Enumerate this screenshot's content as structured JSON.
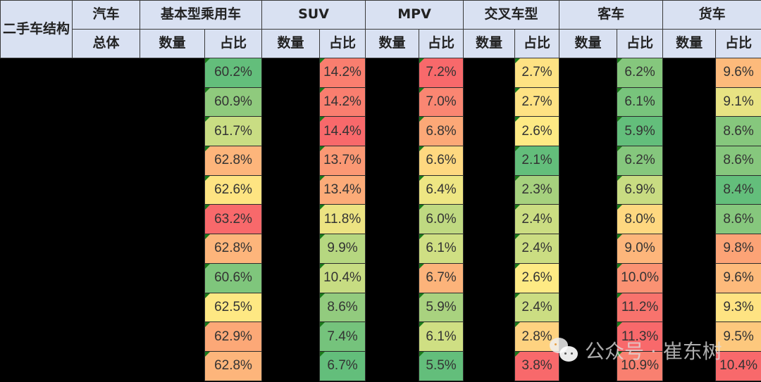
{
  "header": {
    "corner_label": "二手车结构",
    "groups": [
      {
        "label": "汽车"
      },
      {
        "label": "基本型乘用车"
      },
      {
        "label": "SUV"
      },
      {
        "label": "MPV"
      },
      {
        "label": "交叉车型"
      },
      {
        "label": "客车"
      },
      {
        "label": "货车"
      }
    ],
    "sub": {
      "total": "总体",
      "count": "数量",
      "ratio": "占比"
    }
  },
  "rows": [
    {
      "basic": "60.2%",
      "suv": "14.2%",
      "mpv": "7.2%",
      "cross": "2.7%",
      "bus": "6.2%",
      "truck": "9.6%"
    },
    {
      "basic": "60.9%",
      "suv": "14.2%",
      "mpv": "7.0%",
      "cross": "2.7%",
      "bus": "6.1%",
      "truck": "9.1%"
    },
    {
      "basic": "61.7%",
      "suv": "14.4%",
      "mpv": "6.8%",
      "cross": "2.6%",
      "bus": "5.9%",
      "truck": "8.6%"
    },
    {
      "basic": "62.8%",
      "suv": "13.7%",
      "mpv": "6.6%",
      "cross": "2.1%",
      "bus": "6.2%",
      "truck": "8.6%"
    },
    {
      "basic": "62.6%",
      "suv": "13.4%",
      "mpv": "6.4%",
      "cross": "2.3%",
      "bus": "6.9%",
      "truck": "8.4%"
    },
    {
      "basic": "63.2%",
      "suv": "11.8%",
      "mpv": "6.0%",
      "cross": "2.4%",
      "bus": "8.0%",
      "truck": "8.6%"
    },
    {
      "basic": "62.8%",
      "suv": "9.9%",
      "mpv": "6.1%",
      "cross": "2.4%",
      "bus": "9.0%",
      "truck": "9.8%"
    },
    {
      "basic": "60.6%",
      "suv": "10.4%",
      "mpv": "6.7%",
      "cross": "2.6%",
      "bus": "10.0%",
      "truck": "9.6%"
    },
    {
      "basic": "62.5%",
      "suv": "8.6%",
      "mpv": "5.9%",
      "cross": "2.4%",
      "bus": "11.2%",
      "truck": "9.3%"
    },
    {
      "basic": "62.9%",
      "suv": "7.4%",
      "mpv": "6.1%",
      "cross": "2.8%",
      "bus": "11.3%",
      "truck": "9.5%"
    },
    {
      "basic": "62.8%",
      "suv": "6.7%",
      "mpv": "5.5%",
      "cross": "3.8%",
      "bus": "10.9%",
      "truck": "10.4%"
    }
  ],
  "colors": {
    "basic": [
      "#63be7b",
      "#8fca7d",
      "#c9dd83",
      "#fdb57b",
      "#fee482",
      "#f8696b",
      "#fdb57b",
      "#7fc67c",
      "#fee883",
      "#fca877",
      "#fdb57b"
    ],
    "suv": [
      "#f97e6f",
      "#f97e6f",
      "#f8696b",
      "#fb9874",
      "#fcab78",
      "#ece382",
      "#b6d780",
      "#c7dc82",
      "#92cb7e",
      "#75c37c",
      "#63be7b"
    ],
    "mpv": [
      "#f8696b",
      "#fa8672",
      "#fca877",
      "#fed880",
      "#eee683",
      "#bfd981",
      "#cfdf83",
      "#fcb37a",
      "#a9d27f",
      "#cfdf83",
      "#63be7b"
    ],
    "cross": [
      "#fee283",
      "#fee283",
      "#feea84",
      "#63be7b",
      "#a6d17e",
      "#cbdd82",
      "#cbdd82",
      "#feea84",
      "#cbdd82",
      "#fed280",
      "#f8696b"
    ],
    "bus": [
      "#85c77d",
      "#78c47c",
      "#63be7b",
      "#85c77d",
      "#c8dc82",
      "#fed880",
      "#fdb67b",
      "#fa9273",
      "#f8736d",
      "#f8696b",
      "#f98070"
    ],
    "truck": [
      "#fdba7b",
      "#e8e383",
      "#86c77d",
      "#86c77d",
      "#63be7b",
      "#86c77d",
      "#fca376",
      "#fdba7b",
      "#fee382",
      "#fdc87d",
      "#f8696b"
    ]
  },
  "watermark": {
    "text": "公众号 · 崔东树",
    "icon": "wechat-icon"
  }
}
